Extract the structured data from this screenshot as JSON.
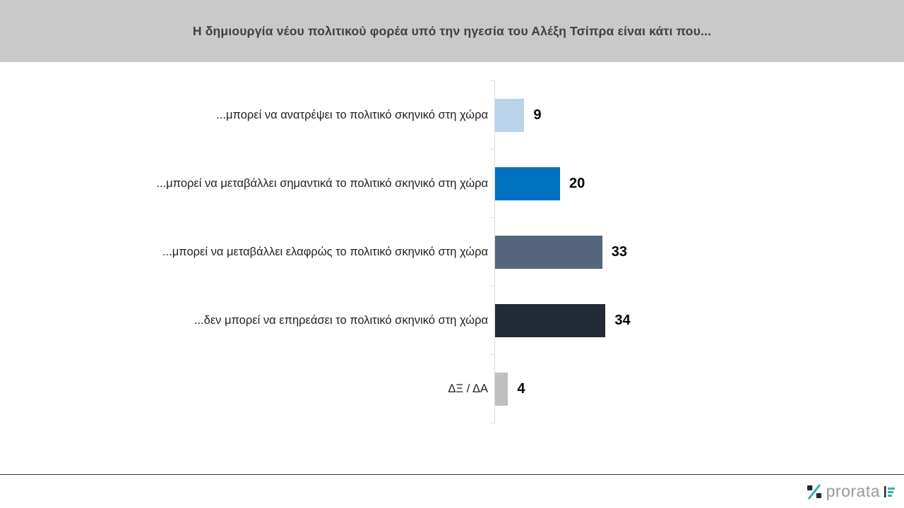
{
  "header": {
    "title": "Η δημιουργία νέου πολιτικού φορέα υπό την ηγεσία του Αλέξη Τσίπρα είναι κάτι που..."
  },
  "chart_data": {
    "type": "bar",
    "orientation": "horizontal",
    "title": "Η δημιουργία νέου πολιτικού φορέα υπό την ηγεσία του Αλέξη Τσίπρα είναι κάτι που...",
    "categories": [
      "...μπορεί να ανατρέψει το πολιτικό σκηνικό στη χώρα",
      "...μπορεί να μεταβάλλει σημαντικά το πολιτικό σκηνικό στη χώρα",
      "...μπορεί να μεταβάλλει ελαφρώς το πολιτικό σκηνικό στη χώρα",
      "...δεν μπορεί να επηρεάσει το πολιτικό σκηνικό στη χώρα",
      "ΔΞ / ΔΑ"
    ],
    "values": [
      9,
      20,
      33,
      34,
      4
    ],
    "bar_colors": [
      "#b9d3ea",
      "#0070c0",
      "#55657d",
      "#222a35",
      "#bfbfbf"
    ],
    "value_labels_shown": true,
    "grid": false,
    "legend": "none",
    "axis_line_color": "#d9d9d9",
    "xlabel": "",
    "ylabel": ""
  },
  "footer": {
    "brand": "prorata",
    "logo_icons": [
      "percent-icon",
      "bar-lines-icon"
    ],
    "brand_colors": {
      "dark": "#222a35",
      "teal": "#33b1a9",
      "text_gray": "#97999c"
    }
  }
}
